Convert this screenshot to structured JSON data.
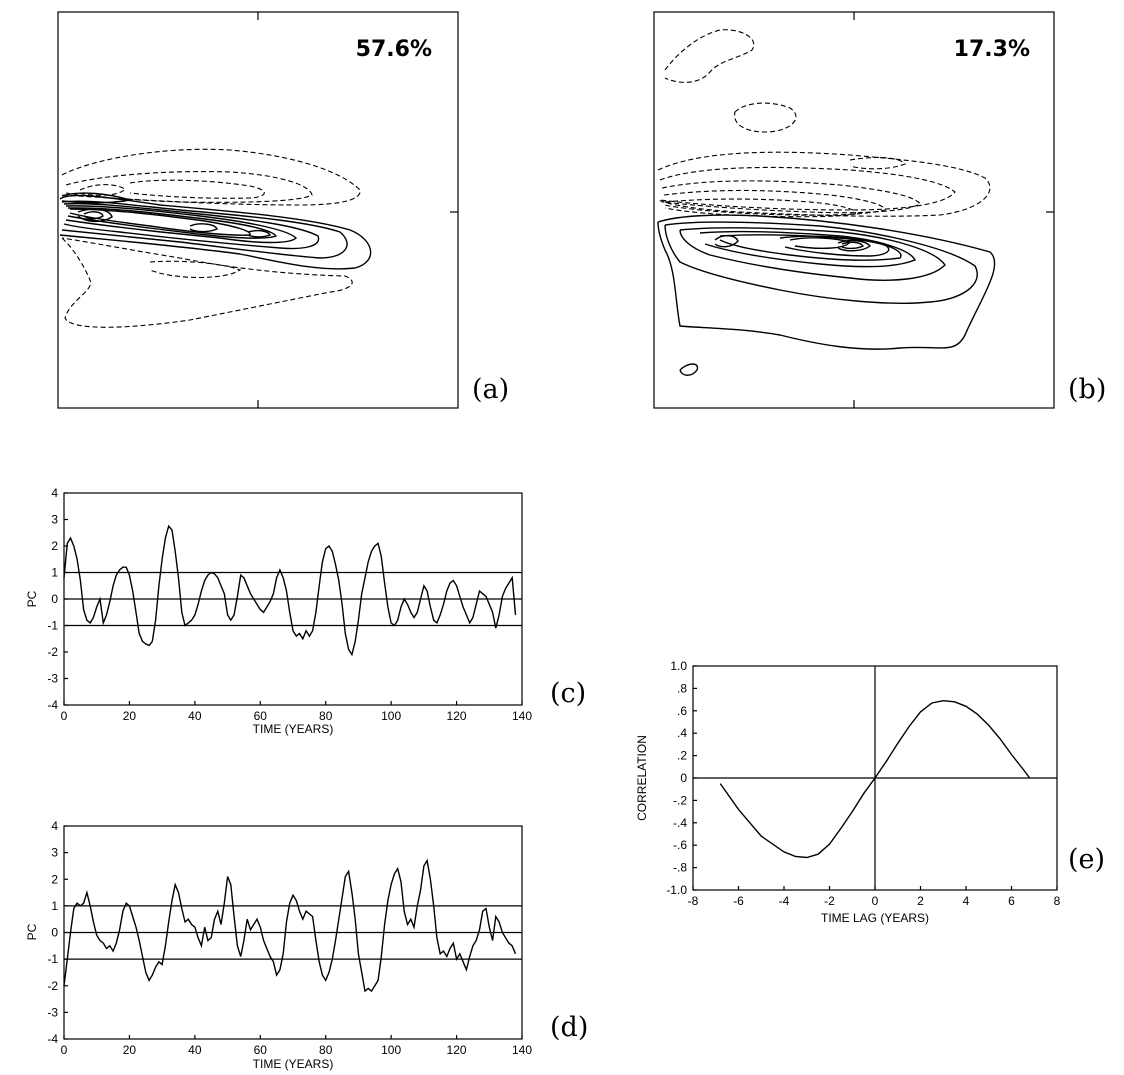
{
  "panels": {
    "a": {
      "label": "(a)",
      "variance": "57.6%"
    },
    "b": {
      "label": "(b)",
      "variance": "17.3%"
    },
    "c": {
      "label": "(c)"
    },
    "d": {
      "label": "(d)"
    },
    "e": {
      "label": "(e)"
    }
  },
  "chart_data": [
    {
      "id": "c",
      "type": "line",
      "xlabel": "TIME (YEARS)",
      "ylabel": "PC",
      "xlim": [
        0,
        140
      ],
      "ylim": [
        -4,
        4
      ],
      "xticks": [
        0,
        20,
        40,
        60,
        80,
        100,
        120,
        140
      ],
      "yticks": [
        4,
        3,
        2,
        1,
        0,
        -1,
        -2,
        -3,
        -4
      ],
      "hlines": [
        1,
        0,
        -1
      ],
      "series": [
        {
          "x": [
            0,
            1,
            2,
            3,
            4,
            5,
            6,
            7,
            8,
            9,
            10,
            11,
            12,
            13,
            14,
            15,
            16,
            17,
            18,
            19,
            20,
            21,
            22,
            23,
            24,
            25,
            26,
            27,
            28,
            29,
            30,
            31,
            32,
            33,
            34,
            35,
            36,
            37,
            38,
            39,
            40,
            41,
            42,
            43,
            44,
            45,
            46,
            47,
            48,
            49,
            50,
            51,
            52,
            53,
            54,
            55,
            56,
            57,
            58,
            59,
            60,
            61,
            62,
            63,
            64,
            65,
            66,
            67,
            68,
            69,
            70,
            71,
            72,
            73,
            74,
            75,
            76,
            77,
            78,
            79,
            80,
            81,
            82,
            83,
            84,
            85,
            86,
            87,
            88,
            89,
            90,
            91,
            92,
            93,
            94,
            95,
            96,
            97,
            98,
            99,
            100,
            101,
            102,
            103,
            104,
            105,
            106,
            107,
            108,
            109,
            110,
            111,
            112,
            113,
            114,
            115,
            116,
            117,
            118,
            119,
            120,
            121,
            122,
            123,
            124,
            125,
            126,
            127,
            128,
            129,
            130,
            131,
            132,
            133,
            134,
            135,
            136,
            137,
            138
          ],
          "values": [
            0.8,
            2.1,
            2.3,
            2.0,
            1.5,
            0.7,
            -0.4,
            -0.8,
            -0.9,
            -0.7,
            -0.3,
            0.0,
            -0.9,
            -0.6,
            -0.1,
            0.5,
            0.9,
            1.1,
            1.2,
            1.2,
            0.9,
            0.3,
            -0.5,
            -1.3,
            -1.6,
            -1.7,
            -1.75,
            -1.6,
            -0.8,
            0.5,
            1.5,
            2.3,
            2.75,
            2.6,
            1.8,
            0.8,
            -0.5,
            -1.0,
            -0.9,
            -0.8,
            -0.6,
            -0.2,
            0.3,
            0.7,
            0.9,
            1.0,
            0.95,
            0.8,
            0.5,
            0.2,
            -0.6,
            -0.8,
            -0.6,
            0.1,
            0.9,
            0.8,
            0.5,
            0.2,
            0.0,
            -0.2,
            -0.4,
            -0.5,
            -0.3,
            -0.1,
            0.2,
            0.8,
            1.1,
            0.8,
            0.3,
            -0.5,
            -1.2,
            -1.4,
            -1.3,
            -1.5,
            -1.2,
            -1.4,
            -1.2,
            -0.5,
            0.5,
            1.4,
            1.9,
            2.0,
            1.8,
            1.3,
            0.7,
            -0.2,
            -1.3,
            -1.9,
            -2.1,
            -1.6,
            -0.8,
            0.2,
            0.8,
            1.4,
            1.8,
            2.0,
            2.1,
            1.6,
            0.6,
            -0.3,
            -0.9,
            -1.0,
            -0.8,
            -0.3,
            0.0,
            -0.2,
            -0.5,
            -0.7,
            -0.5,
            0.0,
            0.5,
            0.3,
            -0.3,
            -0.8,
            -0.9,
            -0.6,
            -0.2,
            0.3,
            0.6,
            0.7,
            0.5,
            0.1,
            -0.3,
            -0.6,
            -0.9,
            -0.7,
            -0.2,
            0.3,
            0.2,
            0.1,
            -0.2,
            -0.5,
            -1.1,
            -0.6,
            0.1,
            0.4,
            0.6,
            0.8,
            -0.6
          ]
        }
      ]
    },
    {
      "id": "d",
      "type": "line",
      "xlabel": "TIME (YEARS)",
      "ylabel": "PC",
      "xlim": [
        0,
        140
      ],
      "ylim": [
        -4,
        4
      ],
      "xticks": [
        0,
        20,
        40,
        60,
        80,
        100,
        120,
        140
      ],
      "yticks": [
        4,
        3,
        2,
        1,
        0,
        -1,
        -2,
        -3,
        -4
      ],
      "hlines": [
        1,
        0,
        -1
      ],
      "series": [
        {
          "x": [
            0,
            1,
            2,
            3,
            4,
            5,
            6,
            7,
            8,
            9,
            10,
            11,
            12,
            13,
            14,
            15,
            16,
            17,
            18,
            19,
            20,
            21,
            22,
            23,
            24,
            25,
            26,
            27,
            28,
            29,
            30,
            31,
            32,
            33,
            34,
            35,
            36,
            37,
            38,
            39,
            40,
            41,
            42,
            43,
            44,
            45,
            46,
            47,
            48,
            49,
            50,
            51,
            52,
            53,
            54,
            55,
            56,
            57,
            58,
            59,
            60,
            61,
            62,
            63,
            64,
            65,
            66,
            67,
            68,
            69,
            70,
            71,
            72,
            73,
            74,
            75,
            76,
            77,
            78,
            79,
            80,
            81,
            82,
            83,
            84,
            85,
            86,
            87,
            88,
            89,
            90,
            91,
            92,
            93,
            94,
            95,
            96,
            97,
            98,
            99,
            100,
            101,
            102,
            103,
            104,
            105,
            106,
            107,
            108,
            109,
            110,
            111,
            112,
            113,
            114,
            115,
            116,
            117,
            118,
            119,
            120,
            121,
            122,
            123,
            124,
            125,
            126,
            127,
            128,
            129,
            130,
            131,
            132,
            133,
            134,
            135,
            136,
            137,
            138
          ],
          "values": [
            -2.0,
            -1.0,
            0.0,
            0.9,
            1.1,
            1.0,
            1.1,
            1.5,
            1.0,
            0.4,
            -0.1,
            -0.3,
            -0.4,
            -0.6,
            -0.5,
            -0.7,
            -0.4,
            0.1,
            0.8,
            1.1,
            1.0,
            0.6,
            0.2,
            -0.3,
            -0.9,
            -1.5,
            -1.8,
            -1.6,
            -1.3,
            -1.1,
            -1.2,
            -0.5,
            0.4,
            1.2,
            1.8,
            1.5,
            0.9,
            0.4,
            0.5,
            0.3,
            0.2,
            -0.2,
            -0.5,
            0.2,
            -0.3,
            -0.2,
            0.5,
            0.8,
            0.3,
            1.1,
            2.1,
            1.8,
            0.6,
            -0.5,
            -0.9,
            -0.3,
            0.5,
            0.1,
            0.3,
            0.5,
            0.2,
            -0.3,
            -0.6,
            -0.9,
            -1.1,
            -1.6,
            -1.4,
            -0.8,
            0.4,
            1.1,
            1.4,
            1.2,
            0.8,
            0.5,
            0.8,
            0.7,
            0.6,
            -0.3,
            -1.1,
            -1.6,
            -1.8,
            -1.5,
            -1.0,
            -0.3,
            0.5,
            1.3,
            2.1,
            2.3,
            1.5,
            0.5,
            -0.8,
            -1.5,
            -2.2,
            -2.1,
            -2.2,
            -2.0,
            -1.8,
            -0.9,
            0.3,
            1.2,
            1.8,
            2.2,
            2.4,
            1.9,
            0.8,
            0.3,
            0.5,
            0.2,
            1.0,
            1.6,
            2.5,
            2.7,
            2.0,
            1.0,
            -0.2,
            -0.8,
            -0.7,
            -0.9,
            -0.6,
            -0.4,
            -1.0,
            -0.8,
            -1.1,
            -1.4,
            -0.9,
            -0.5,
            -0.3,
            0.1,
            0.8,
            0.9,
            0.2,
            -0.3,
            0.6,
            0.4,
            0.0,
            -0.2,
            -0.4,
            -0.5,
            -0.8
          ]
        }
      ]
    },
    {
      "id": "e",
      "type": "line",
      "xlabel": "TIME LAG (YEARS)",
      "ylabel": "CORRELATION",
      "xlim": [
        -8,
        8
      ],
      "ylim": [
        -1.0,
        1.0
      ],
      "xticks": [
        -8,
        -6,
        -4,
        -2,
        0,
        2,
        4,
        6,
        8
      ],
      "xtick_labels": [
        "-8",
        "-6",
        "-4",
        "-2",
        "0",
        "2",
        "4",
        "6",
        "8"
      ],
      "yticks": [
        1.0,
        0.8,
        0.6,
        0.4,
        0.2,
        0,
        -0.2,
        -0.4,
        -0.6,
        -0.8,
        -1.0
      ],
      "ytick_labels": [
        "1.0",
        ".8",
        ".6",
        ".4",
        ".2",
        "0",
        "-.2",
        "-.4",
        "-.6",
        "-.8",
        "-1.0"
      ],
      "hlines": [
        0
      ],
      "vlines": [
        0
      ],
      "series": [
        {
          "x": [
            -6.8,
            -6.0,
            -5.0,
            -4.0,
            -3.5,
            -3.0,
            -2.5,
            -2.0,
            -1.5,
            -1.0,
            -0.5,
            0.0,
            0.5,
            1.0,
            1.5,
            2.0,
            2.5,
            3.0,
            3.5,
            4.0,
            4.5,
            5.0,
            5.5,
            6.0,
            6.5,
            6.8
          ],
          "values": [
            -0.05,
            -0.28,
            -0.52,
            -0.66,
            -0.7,
            -0.71,
            -0.68,
            -0.59,
            -0.45,
            -0.3,
            -0.14,
            0.0,
            0.15,
            0.31,
            0.46,
            0.59,
            0.67,
            0.69,
            0.68,
            0.64,
            0.57,
            0.47,
            0.35,
            0.21,
            0.08,
            0.0
          ]
        }
      ]
    }
  ]
}
